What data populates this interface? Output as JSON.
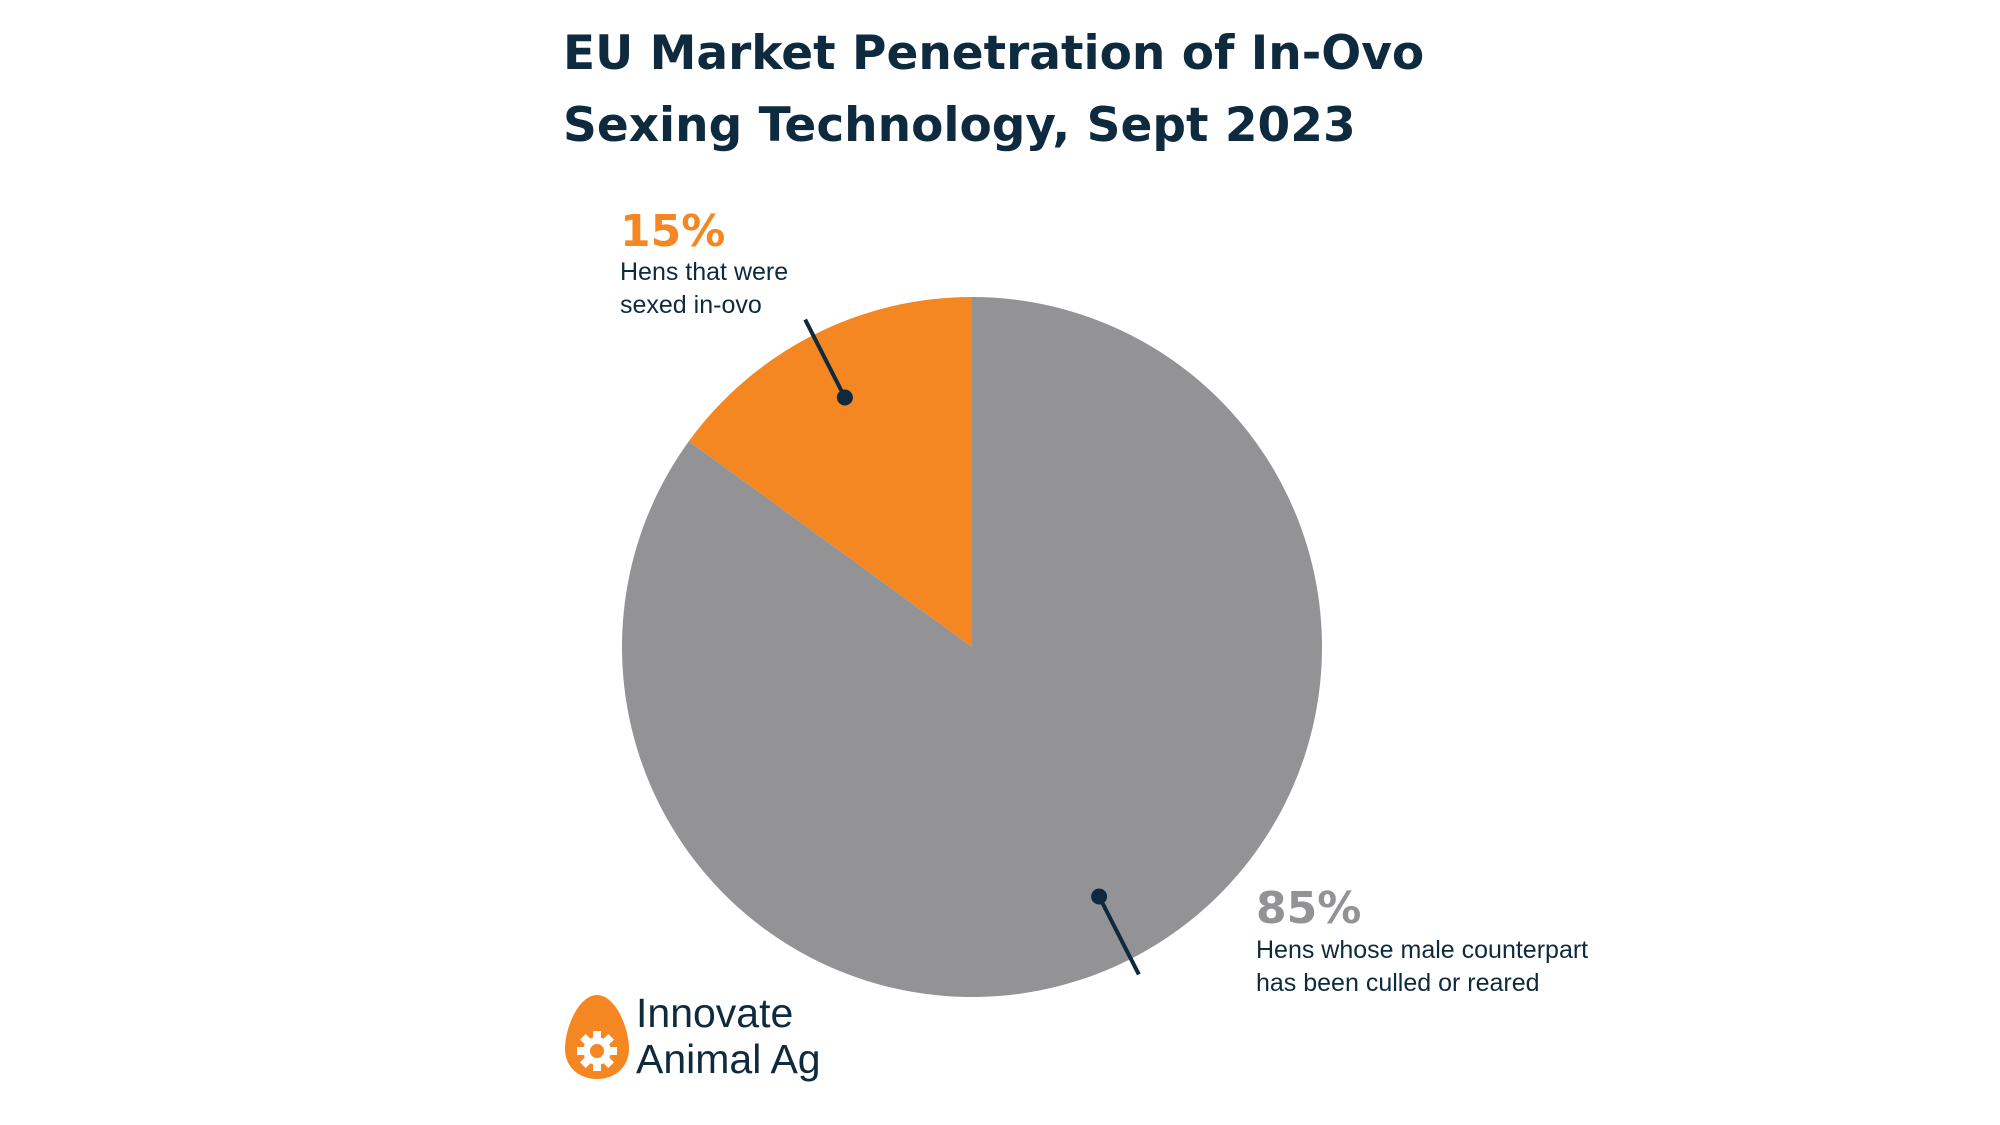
{
  "chart_data": {
    "type": "pie",
    "title_lines": [
      "EU Market Penetration of In-Ovo",
      "Sexing Technology, Sept 2023"
    ],
    "slices": [
      {
        "value": 15,
        "percent_label": "15%",
        "desc_lines": [
          "Hens that were",
          "sexed in-ovo"
        ],
        "color": "#f48722",
        "label_color": "#f48722"
      },
      {
        "value": 85,
        "percent_label": "85%",
        "desc_lines": [
          "Hens whose male counterpart",
          "has been culled or reared"
        ],
        "color": "#939396",
        "label_color": "#939396"
      }
    ],
    "start_angle": "12 o'clock",
    "direction": "counter-clockwise"
  },
  "branding": {
    "name_lines": [
      "Innovate",
      "Animal Ag"
    ],
    "logo_icon": "egg-gear-icon",
    "logo_color": "#f48722"
  },
  "colors": {
    "text_dark": "#0e2a3f",
    "leader": "#0e2a3f"
  }
}
